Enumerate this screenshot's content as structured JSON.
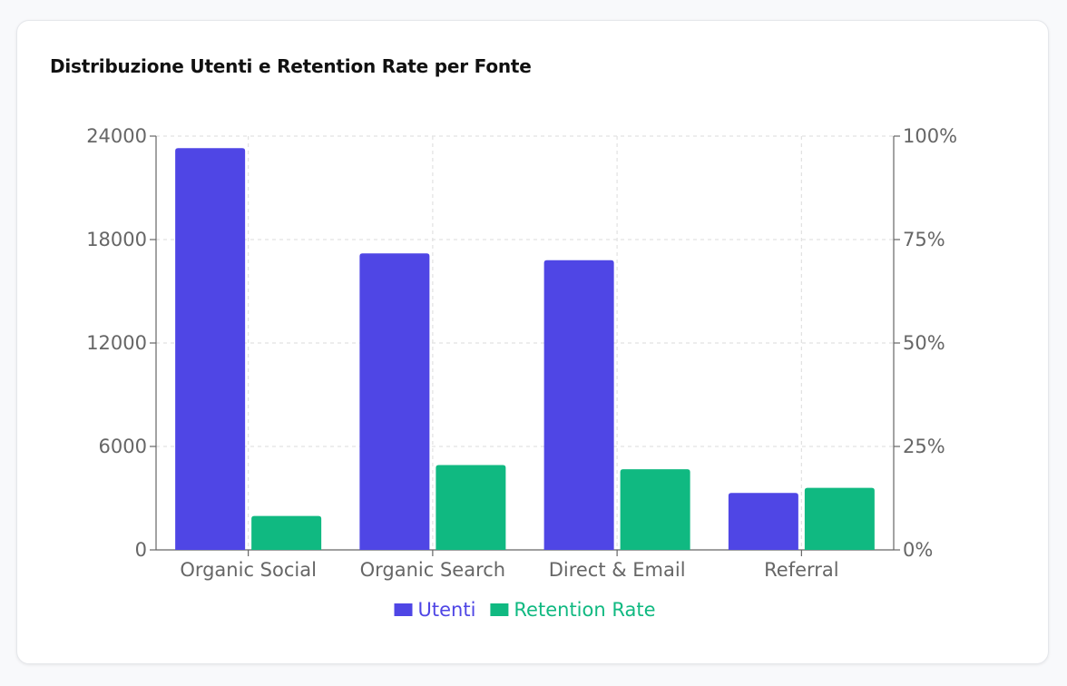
{
  "card": {
    "title": "Distribuzione Utenti e Retention Rate per Fonte"
  },
  "chart_data": {
    "type": "bar",
    "title": "Distribuzione Utenti e Retention Rate per Fonte",
    "categories": [
      "Organic Social",
      "Organic Search",
      "Direct & Email",
      "Referral"
    ],
    "series": [
      {
        "name": "Utenti",
        "axis": "left",
        "color": "#4f46e5",
        "values": [
          23300,
          17200,
          16800,
          3300
        ]
      },
      {
        "name": "Retention Rate",
        "axis": "right",
        "color": "#10b981",
        "values": [
          8.2,
          20.5,
          19.5,
          15.0
        ]
      }
    ],
    "y_left": {
      "ylim": [
        0,
        24000
      ],
      "ticks": [
        "0",
        "6000",
        "12000",
        "18000",
        "24000"
      ],
      "tick_values": [
        0,
        6000,
        12000,
        18000,
        24000
      ]
    },
    "y_right": {
      "ylim": [
        0,
        100
      ],
      "ticks": [
        "0%",
        "25%",
        "50%",
        "75%",
        "100%"
      ],
      "tick_values": [
        0,
        25,
        50,
        75,
        100
      ]
    },
    "grid": true,
    "legend_position": "bottom"
  }
}
